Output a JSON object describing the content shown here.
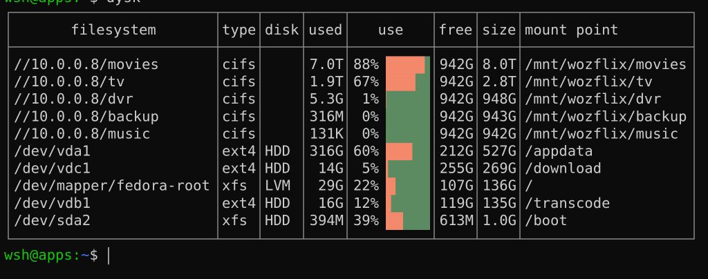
{
  "top_prompt": {
    "user_host": "wsh@apps",
    "sep": ":",
    "path": "~",
    "symbol": "$",
    "command": "dysk"
  },
  "table": {
    "headers": [
      "filesystem",
      "type",
      "disk",
      "used",
      "use",
      "free",
      "size",
      "mount point"
    ],
    "rows": [
      {
        "filesystem": "//10.0.0.8/movies",
        "type": "cifs",
        "disk": null,
        "used": "7.0T",
        "use": {
          "value": 88,
          "label": "88%"
        },
        "free": "942G",
        "size": "8.0T",
        "mount": "/mnt/wozflix/movies"
      },
      {
        "filesystem": "//10.0.0.8/tv",
        "type": "cifs",
        "disk": null,
        "used": "1.9T",
        "use": {
          "value": 67,
          "label": "67%"
        },
        "free": "942G",
        "size": "2.8T",
        "mount": "/mnt/wozflix/tv"
      },
      {
        "filesystem": "//10.0.0.8/dvr",
        "type": "cifs",
        "disk": null,
        "used": "5.3G",
        "use": {
          "value": 1,
          "label": "1%"
        },
        "free": "942G",
        "size": "948G",
        "mount": "/mnt/wozflix/dvr"
      },
      {
        "filesystem": "//10.0.0.8/backup",
        "type": "cifs",
        "disk": null,
        "used": "316M",
        "use": {
          "value": 0,
          "label": "0%"
        },
        "free": "942G",
        "size": "943G",
        "mount": "/mnt/wozflix/backup"
      },
      {
        "filesystem": "//10.0.0.8/music",
        "type": "cifs",
        "disk": null,
        "used": "131K",
        "use": {
          "value": 0,
          "label": "0%"
        },
        "free": "942G",
        "size": "942G",
        "mount": "/mnt/wozflix/music"
      },
      {
        "filesystem": "/dev/vda1",
        "type": "ext4",
        "disk": "HDD",
        "used": "316G",
        "use": {
          "value": 60,
          "label": "60%"
        },
        "free": "212G",
        "size": "527G",
        "mount": "/appdata"
      },
      {
        "filesystem": "/dev/vdc1",
        "type": "ext4",
        "disk": "HDD",
        "used": "14G",
        "use": {
          "value": 5,
          "label": "5%"
        },
        "free": "255G",
        "size": "269G",
        "mount": "/download"
      },
      {
        "filesystem": "/dev/mapper/fedora-root",
        "type": "xfs",
        "disk": "LVM",
        "used": "29G",
        "use": {
          "value": 22,
          "label": "22%"
        },
        "free": "107G",
        "size": "136G",
        "mount": "/"
      },
      {
        "filesystem": "/dev/vdb1",
        "type": "ext4",
        "disk": "HDD",
        "used": "16G",
        "use": {
          "value": 12,
          "label": "12%"
        },
        "free": "119G",
        "size": "135G",
        "mount": "/transcode"
      },
      {
        "filesystem": "/dev/sda2",
        "type": "xfs",
        "disk": "HDD",
        "used": "394M",
        "use": {
          "value": 39,
          "label": "39%"
        },
        "free": "613M",
        "size": "1.0G",
        "mount": "/boot"
      }
    ]
  },
  "bottom_prompt": {
    "user_host": "wsh@apps",
    "sep": ":",
    "path": "~",
    "symbol": "$"
  }
}
